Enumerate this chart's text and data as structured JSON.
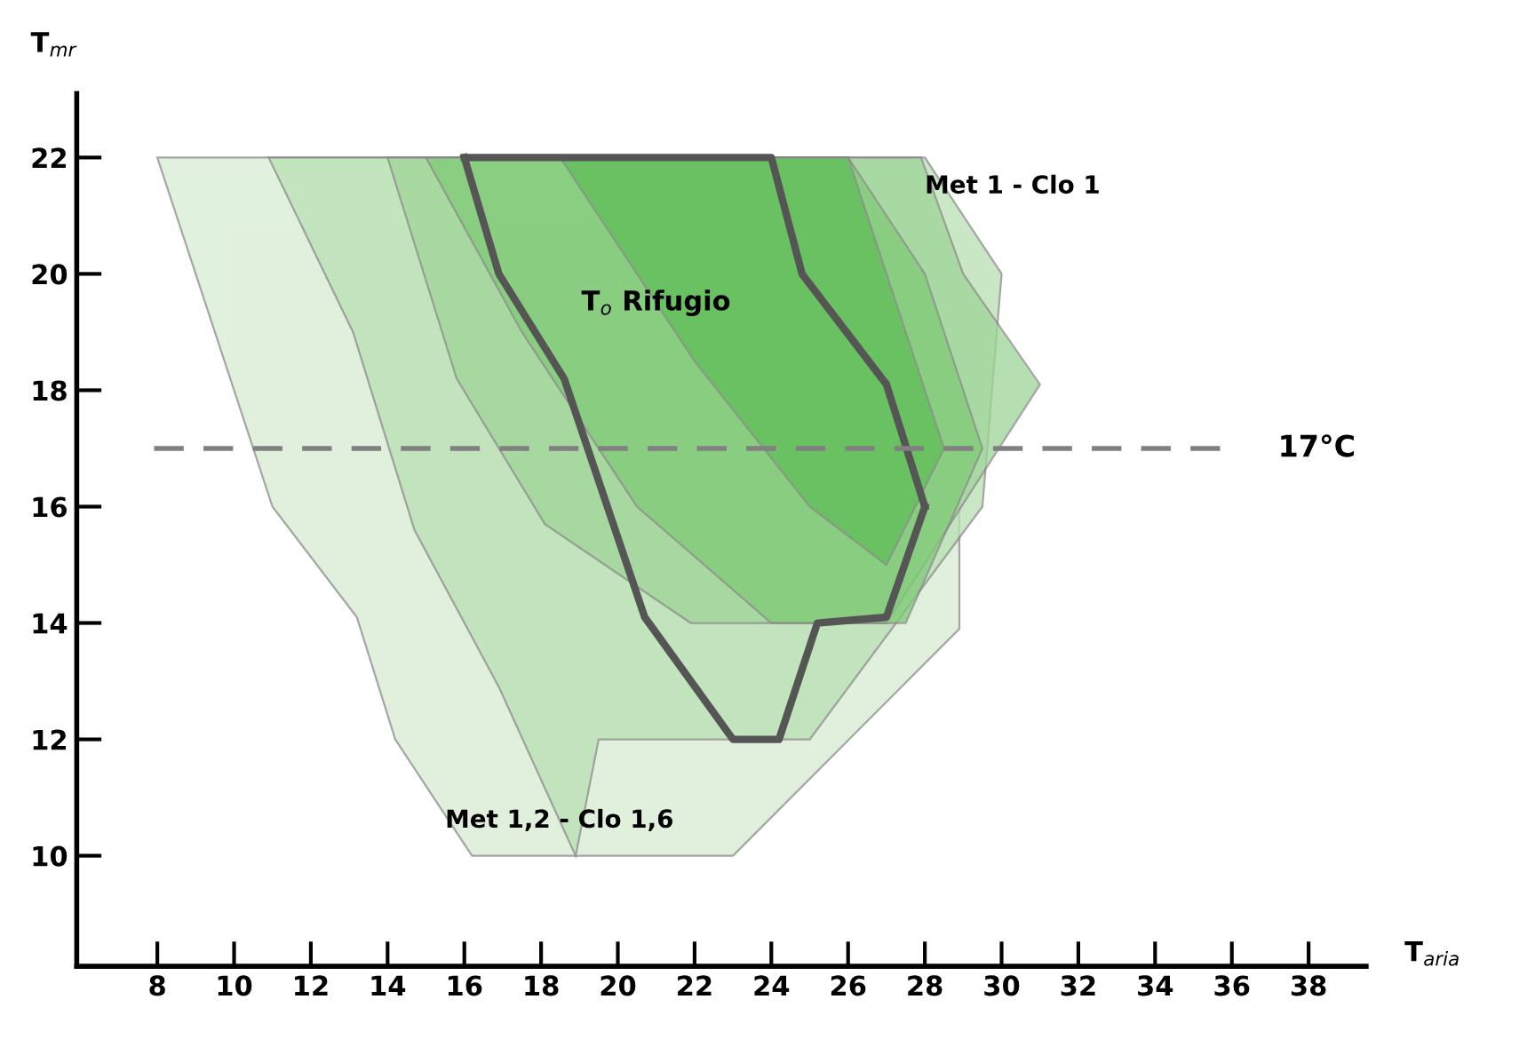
{
  "chart_data": {
    "type": "area",
    "xlabel": "T$_{aria}$",
    "ylabel": "T$_{mr}$",
    "xlim": [
      5.9,
      39.5
    ],
    "ylim": [
      8.1,
      23.1
    ],
    "xticks": [
      8,
      10,
      12,
      14,
      16,
      18,
      20,
      22,
      24,
      26,
      28,
      30,
      32,
      34,
      36,
      38
    ],
    "yticks": [
      10,
      12,
      14,
      16,
      18,
      20,
      22
    ],
    "grid": false,
    "legend": false,
    "series": [
      {
        "color": "#d6ecd2",
        "x": [
          8,
          11,
          13.2,
          14.2,
          16.2,
          23,
          28.9,
          28.9,
          26
        ],
        "values": [
          22,
          16,
          14.1,
          12,
          10,
          10,
          13.9,
          18,
          22
        ]
      },
      {
        "color": "#b9e0b2",
        "x": [
          10.9,
          13.1,
          14.7,
          16.9,
          18.9,
          19.5,
          25,
          29.5,
          30,
          28
        ],
        "values": [
          22,
          19,
          15.6,
          12.9,
          10,
          12,
          12,
          16,
          20,
          22
        ]
      },
      {
        "color": "#9ed597",
        "x": [
          14,
          15.8,
          18.1,
          21.9,
          27,
          31,
          29,
          27.9
        ],
        "values": [
          22,
          18.2,
          15.7,
          14,
          14,
          18.1,
          20,
          22
        ]
      },
      {
        "color": "#7fca77",
        "x": [
          15,
          17.5,
          20.5,
          24,
          27.5,
          29.5,
          28,
          26
        ],
        "values": [
          22,
          19,
          16,
          14,
          14,
          17,
          20,
          22
        ]
      },
      {
        "color": "#5fbd58",
        "x": [
          18.5,
          22,
          25,
          27,
          28.5,
          26
        ],
        "values": [
          22,
          18.5,
          16,
          15,
          17,
          22
        ]
      },
      {
        "type": "line",
        "name": "T$_{o}$ Rifugio",
        "color": "#555555",
        "x": [
          16,
          24,
          24.8,
          27,
          28
        ],
        "values": [
          22,
          22,
          20,
          18.1,
          16
        ]
      },
      {
        "type": "line",
        "color": "#555555",
        "x": [
          16,
          16.9,
          18.6,
          20.7,
          23,
          24.2,
          25.2,
          27,
          28
        ],
        "values": [
          22,
          20,
          18.2,
          14.1,
          12,
          12,
          14,
          14.1,
          16
        ]
      }
    ],
    "ref_lines": [
      {
        "axis": "y",
        "value": 17,
        "label": "17°C",
        "color": "#808080",
        "line_style": "dashed"
      }
    ],
    "annotations": [
      {
        "text": "Met 1 - Clo 1",
        "x": 28,
        "y": 21.5
      },
      {
        "text": "Met 1,2 - Clo 1,6",
        "x": 15.5,
        "y": 10.6
      }
    ]
  }
}
